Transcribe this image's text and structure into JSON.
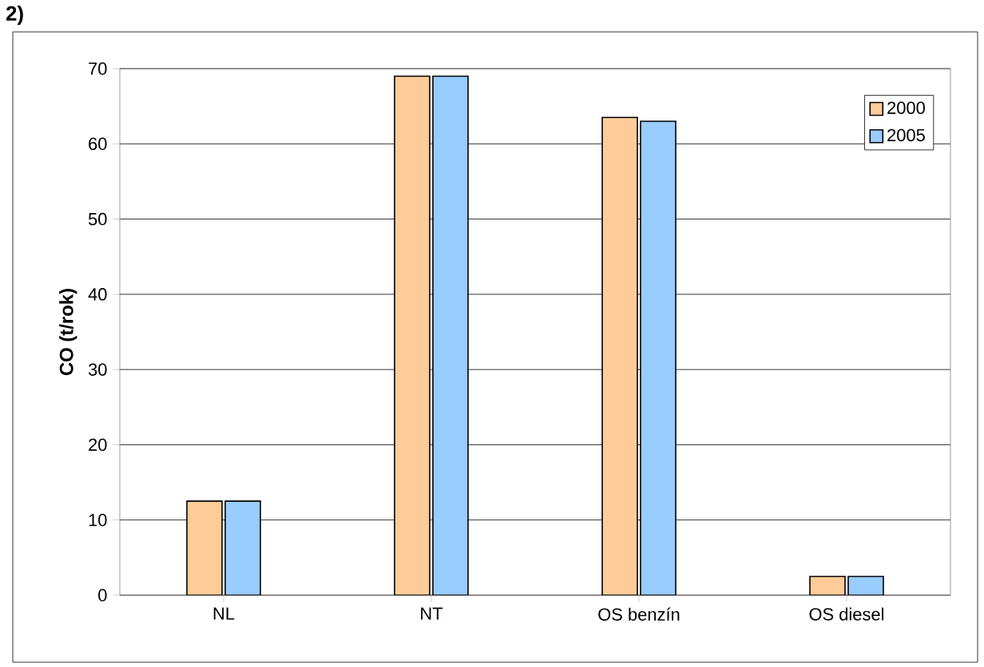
{
  "chart_data": {
    "type": "bar",
    "ylabel": "CO  (t/rok)",
    "categories": [
      "NL",
      "NT",
      "OS benzín",
      "OS diesel"
    ],
    "series": [
      {
        "name": "2000",
        "color": "#ffcc99",
        "values": [
          12.5,
          69,
          63.5,
          2.5
        ]
      },
      {
        "name": "2005",
        "color": "#99ccff",
        "values": [
          12.5,
          69,
          63,
          2.5
        ]
      }
    ],
    "ylim": [
      0,
      70
    ],
    "yticks": [
      0,
      10,
      20,
      30,
      40,
      50,
      60,
      70
    ],
    "grid": "y",
    "legend": "top right",
    "annotations": [
      "2)"
    ]
  }
}
